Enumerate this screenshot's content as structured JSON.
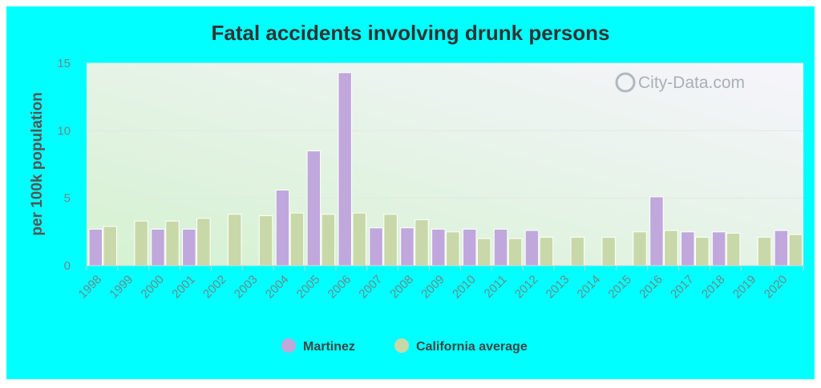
{
  "chart_data": {
    "type": "bar",
    "title": "Fatal accidents involving drunk persons",
    "xlabel": "",
    "ylabel": "per 100k population",
    "ylim": [
      0,
      15
    ],
    "yticks": [
      0,
      5,
      10,
      15
    ],
    "categories": [
      "1998",
      "1999",
      "2000",
      "2001",
      "2002",
      "2003",
      "2004",
      "2005",
      "2006",
      "2007",
      "2008",
      "2009",
      "2010",
      "2011",
      "2012",
      "2013",
      "2014",
      "2015",
      "2016",
      "2017",
      "2018",
      "2019",
      "2020"
    ],
    "series": [
      {
        "name": "Martinez",
        "color": "#c0a8dc",
        "values": [
          2.7,
          null,
          2.7,
          2.7,
          null,
          null,
          5.6,
          8.5,
          14.3,
          2.8,
          2.8,
          2.7,
          2.7,
          2.7,
          2.6,
          null,
          null,
          null,
          5.1,
          2.5,
          2.5,
          null,
          2.6
        ]
      },
      {
        "name": "California average",
        "color": "#c8d8a8",
        "values": [
          2.9,
          3.3,
          3.3,
          3.5,
          3.8,
          3.7,
          3.9,
          3.8,
          3.9,
          3.8,
          3.4,
          2.5,
          2.0,
          2.0,
          2.1,
          2.1,
          2.1,
          2.5,
          2.6,
          2.1,
          2.4,
          2.1,
          2.3
        ]
      }
    ],
    "legend_position": "bottom",
    "grid": true
  },
  "watermark": "City-Data.com"
}
